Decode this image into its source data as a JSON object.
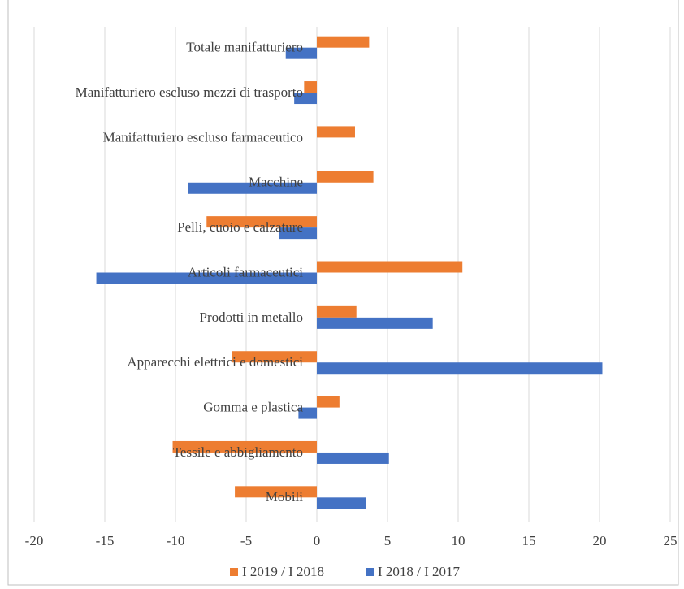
{
  "chart_data": {
    "type": "bar",
    "orientation": "horizontal",
    "categories": [
      "Totale manifatturiero",
      "Manifatturiero escluso mezzi di trasporto",
      "Manifatturiero escluso farmaceutico",
      "Macchine",
      "Pelli, cuoio e calzature",
      "Articoli farmaceutici",
      "Prodotti in metallo",
      "Apparecchi elettrici e domestici",
      "Gomma e plastica",
      "Tessile e abbigliamento",
      "Mobili"
    ],
    "series": [
      {
        "name": "I 2019 / I 2018",
        "color": "#ed7d31",
        "values": [
          3.7,
          -0.9,
          2.7,
          4.0,
          -7.8,
          10.3,
          2.8,
          -6.0,
          1.6,
          -10.2,
          -5.8
        ]
      },
      {
        "name": "I 2018 / I 2017",
        "color": "#4472c4",
        "values": [
          -2.2,
          -1.6,
          null,
          -9.1,
          -2.7,
          -15.6,
          8.2,
          20.2,
          -1.3,
          5.1,
          3.5
        ]
      }
    ],
    "xlim": [
      -20,
      25
    ],
    "xticks": [
      -20,
      -15,
      -10,
      -5,
      0,
      5,
      10,
      15,
      20,
      25
    ],
    "grid": true,
    "legend": "bottom"
  }
}
